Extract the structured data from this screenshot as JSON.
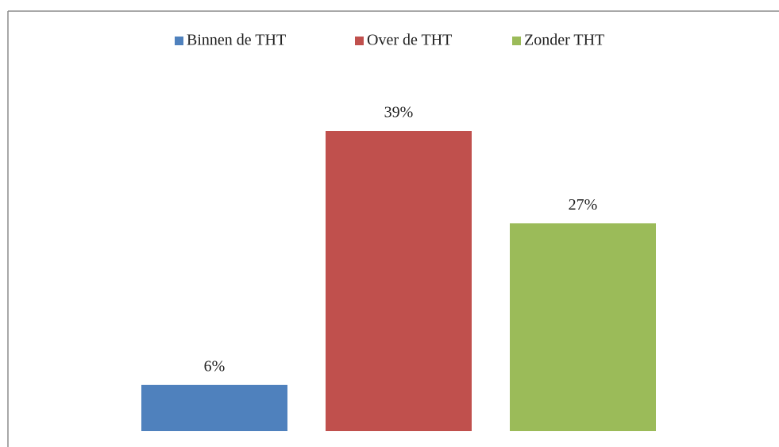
{
  "chart_data": {
    "type": "bar",
    "series": [
      {
        "name": "Binnen de THT",
        "color": "#4f81bd",
        "values": [
          6
        ],
        "value_labels": [
          "6%"
        ]
      },
      {
        "name": "Over de THT",
        "color": "#c0504d",
        "values": [
          39
        ],
        "value_labels": [
          "39%"
        ]
      },
      {
        "name": "Zonder THT",
        "color": "#9bbb59",
        "values": [
          27
        ],
        "value_labels": [
          "27%"
        ]
      }
    ],
    "legend": "top"
  }
}
